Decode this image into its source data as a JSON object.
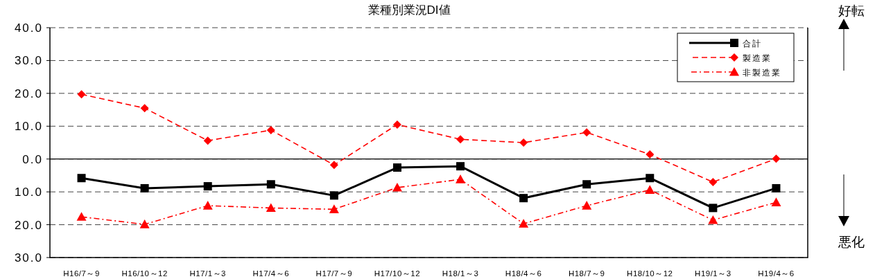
{
  "chart_data": {
    "type": "line",
    "title": "業種別業況DI値",
    "categories": [
      "H16/7～9",
      "H16/10～12",
      "H17/1～3",
      "H17/4～6",
      "H17/7～9",
      "H17/10～12",
      "H18/1～3",
      "H18/4～6",
      "H18/7～9",
      "H18/10～12",
      "H19/1～3",
      "H19/4～6"
    ],
    "series": [
      {
        "name": "合計",
        "color": "#000000",
        "marker": "square",
        "line_style": "solid",
        "values": [
          -5.8,
          -8.9,
          -8.3,
          -7.7,
          -11.1,
          -2.6,
          -2.2,
          -11.9,
          -7.7,
          -5.8,
          -14.9,
          -8.9
        ]
      },
      {
        "name": "製造業",
        "color": "#ff0000",
        "marker": "diamond",
        "line_style": "dashed",
        "values": [
          19.7,
          15.5,
          5.6,
          8.8,
          -1.8,
          10.5,
          6.0,
          5.0,
          8.1,
          1.4,
          -7.0,
          0.1
        ]
      },
      {
        "name": "非製造業",
        "color": "#ff0000",
        "marker": "triangle",
        "line_style": "dashdot",
        "values": [
          -17.6,
          -19.9,
          -14.2,
          -14.9,
          -15.3,
          -8.7,
          -6.2,
          -19.7,
          -14.2,
          -9.4,
          -18.6,
          -13.2
        ]
      }
    ],
    "ylim": [
      -30,
      40
    ],
    "yticks": [
      {
        "value": -30,
        "label": "30.0"
      },
      {
        "value": -20,
        "label": "20.0"
      },
      {
        "value": -10,
        "label": "10.0"
      },
      {
        "value": 0,
        "label": "0.0"
      },
      {
        "value": 10,
        "label": "10.0"
      },
      {
        "value": 20,
        "label": "20.0"
      },
      {
        "value": 30,
        "label": "30.0"
      },
      {
        "value": 40,
        "label": "40.0"
      }
    ],
    "grid": "y",
    "ref_lines": [
      {
        "axis": "y",
        "value": 0,
        "color": "#000000",
        "line_style": "solid"
      }
    ],
    "legend": "top right",
    "annotations": [
      "好転",
      "悪化"
    ]
  }
}
